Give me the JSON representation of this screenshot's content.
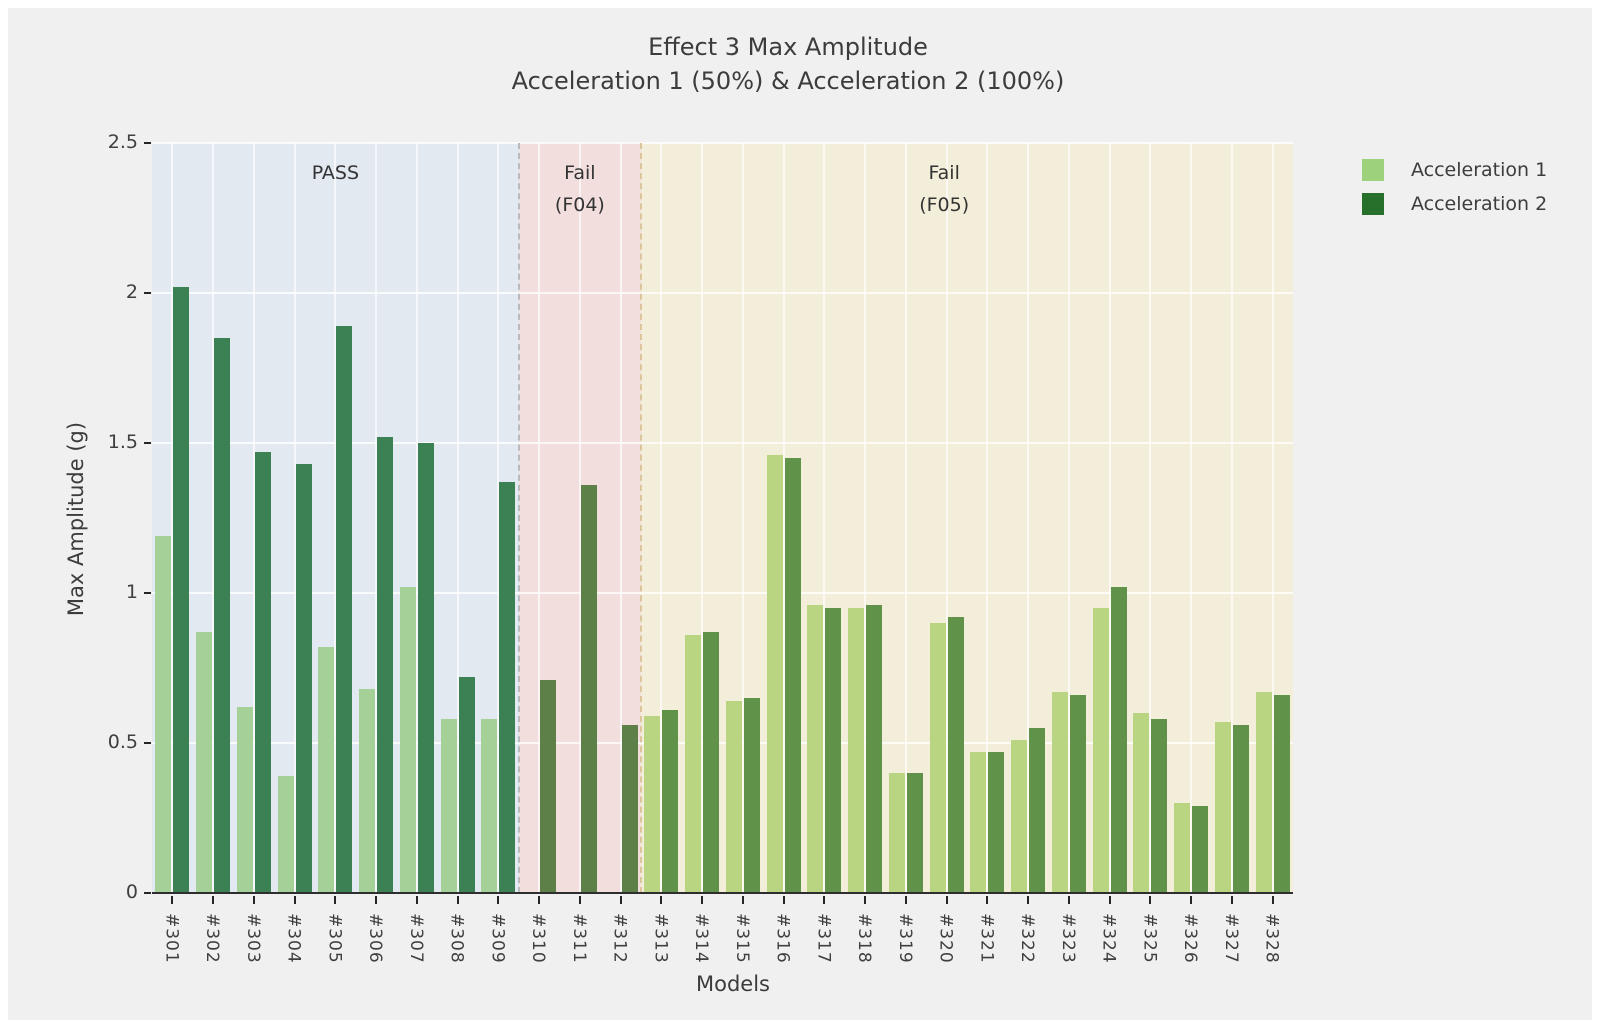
{
  "colors": {
    "page_bg": "#ffffff",
    "figure_bg": "#f0f0f0",
    "text": "#3c3c3c",
    "gridline": "#ffffff",
    "axis_spine": "#2e2e2e"
  },
  "chart_data": {
    "type": "bar",
    "title_lines": [
      "Effect 3 Max Amplitude",
      "Acceleration 1 (50%) & Acceleration 2 (100%)"
    ],
    "xlabel": "Models",
    "ylabel": "Max Amplitude (g)",
    "ylim": [
      0,
      2.5
    ],
    "yticks": [
      0,
      0.5,
      1,
      1.5,
      2,
      2.5
    ],
    "ytick_labels": [
      "0",
      "0.5",
      "1",
      "1.5",
      "2",
      "2.5"
    ],
    "grid": "on",
    "categories": [
      "#301",
      "#302",
      "#303",
      "#304",
      "#305",
      "#306",
      "#307",
      "#308",
      "#309",
      "#310",
      "#311",
      "#312",
      "#313",
      "#314",
      "#315",
      "#316",
      "#317",
      "#318",
      "#319",
      "#320",
      "#321",
      "#322",
      "#323",
      "#324",
      "#325",
      "#326",
      "#327",
      "#328"
    ],
    "series": [
      {
        "name": "Acceleration 1",
        "color": "#9ed17b",
        "values": [
          1.19,
          0.87,
          0.62,
          0.39,
          0.82,
          0.68,
          1.02,
          0.58,
          0.58,
          null,
          null,
          null,
          0.59,
          0.86,
          0.64,
          1.46,
          0.96,
          0.95,
          0.4,
          0.9,
          0.47,
          0.51,
          0.67,
          0.95,
          0.6,
          0.3,
          0.57,
          0.67
        ]
      },
      {
        "name": "Acceleration 2",
        "color": "#27702c",
        "values": [
          2.02,
          1.85,
          1.47,
          1.43,
          1.89,
          1.52,
          1.5,
          0.72,
          1.37,
          0.71,
          1.36,
          0.56,
          0.61,
          0.87,
          0.65,
          1.45,
          0.95,
          0.96,
          0.4,
          0.92,
          0.47,
          0.55,
          0.66,
          1.02,
          0.58,
          0.29,
          0.56,
          0.66
        ]
      }
    ],
    "regions": [
      {
        "id": "pass",
        "label": "PASS",
        "start_index": 0,
        "end_index": 9,
        "bg": "#e3e9f1",
        "bar_colors": [
          "#a5d097",
          "#3b8154"
        ],
        "divider_after": "#b9babc",
        "label_pos": 0.5
      },
      {
        "id": "fail-f04",
        "label": "Fail\n(F04)",
        "start_index": 9,
        "end_index": 12,
        "bg": "#f3dede",
        "bar_colors": [
          "#aabc8b",
          "#5d8049"
        ],
        "divider_after": "#dcc49c",
        "label_pos": 0.5
      },
      {
        "id": "fail-f05",
        "label": "Fail\n(F05)",
        "start_index": 12,
        "end_index": 28,
        "bg": "#f2eed9",
        "bar_colors": [
          "#bad581",
          "#60924a"
        ],
        "divider_after": null,
        "label_pos": 0.465
      }
    ],
    "legend": {
      "position": "upper-right-outside",
      "entries": [
        {
          "label": "Acceleration 1",
          "color": "#9ed17b"
        },
        {
          "label": "Acceleration 2",
          "color": "#27702c"
        }
      ]
    }
  }
}
